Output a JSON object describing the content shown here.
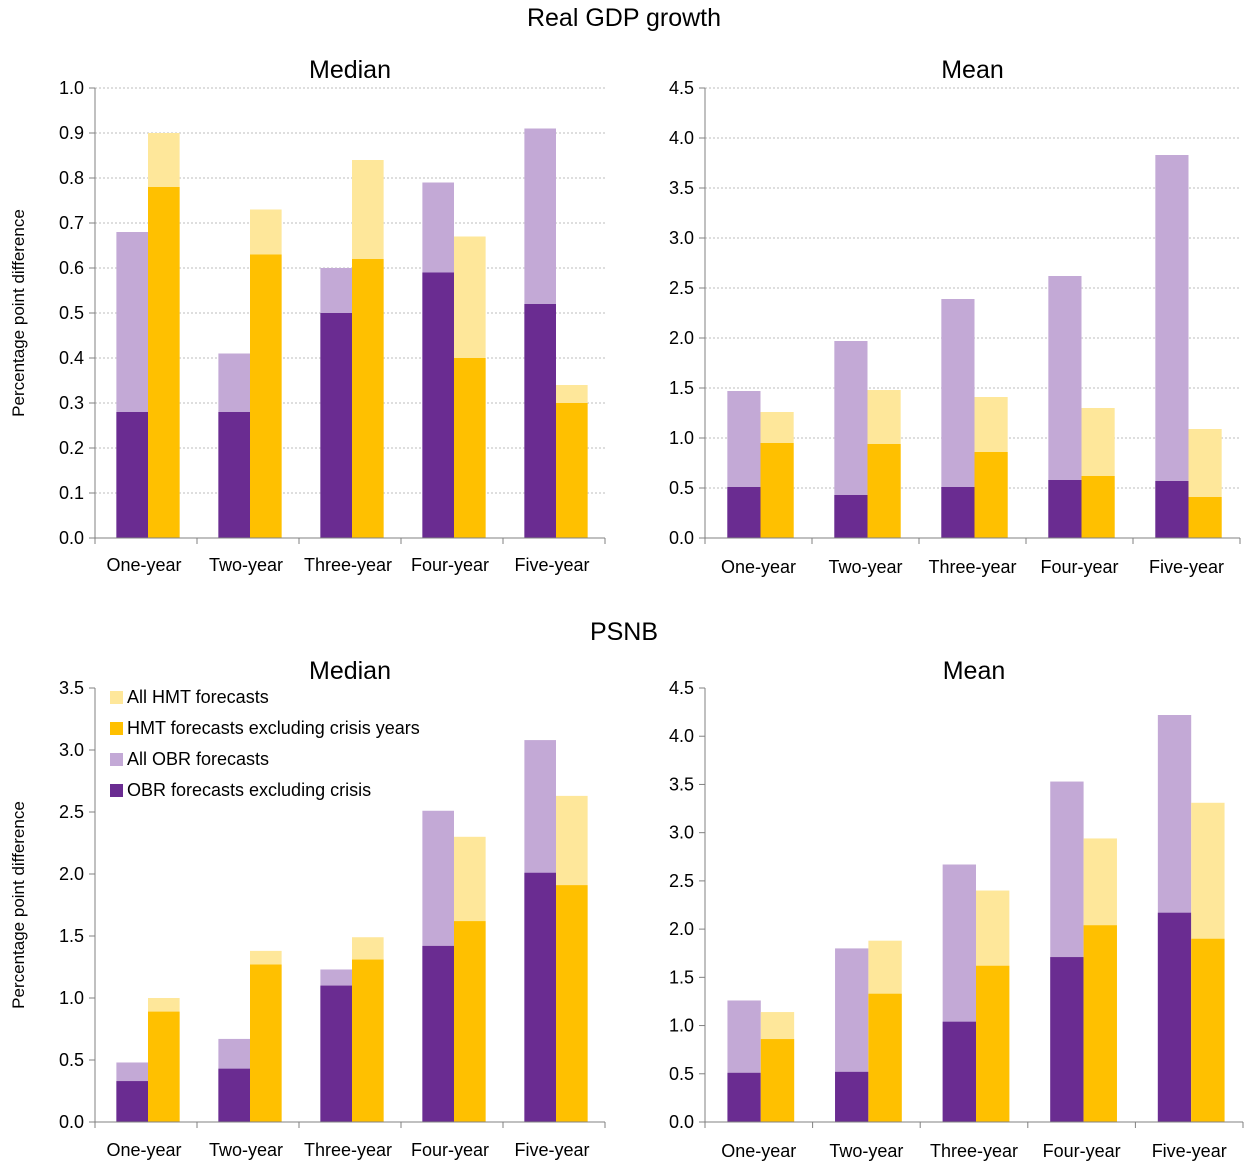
{
  "sections": [
    {
      "title": "Real GDP growth"
    },
    {
      "title": "PSNB"
    }
  ],
  "colors": {
    "all_hmt": "#FEE79A",
    "hmt_ex_crisis": "#FFC000",
    "all_obr": "#C3A9D6",
    "obr_ex_crisis": "#6A2C91"
  },
  "legend": [
    {
      "label": "All HMT forecasts",
      "color_key": "all_hmt"
    },
    {
      "label": "HMT forecasts excluding crisis years",
      "color_key": "hmt_ex_crisis"
    },
    {
      "label": "All OBR forecasts",
      "color_key": "all_obr"
    },
    {
      "label": "OBR forecasts excluding crisis",
      "color_key": "obr_ex_crisis"
    }
  ],
  "chart_data": [
    {
      "type": "bar",
      "section": "Real GDP growth",
      "title": "Median",
      "ylabel": "Percentage point difference",
      "ylim": [
        0,
        1.0
      ],
      "ytick_step": 0.1,
      "ytick_decimals": 1,
      "categories": [
        "One-year",
        "Two-year",
        "Three-year",
        "Four-year",
        "Five-year"
      ],
      "series": [
        {
          "name": "All OBR forecasts",
          "values": [
            0.68,
            0.41,
            0.6,
            0.79,
            0.91
          ]
        },
        {
          "name": "OBR forecasts excluding crisis",
          "values": [
            0.28,
            0.28,
            0.5,
            0.59,
            0.52
          ]
        },
        {
          "name": "All HMT forecasts",
          "values": [
            0.9,
            0.73,
            0.84,
            0.67,
            0.34
          ]
        },
        {
          "name": "HMT forecasts excluding crisis years",
          "values": [
            0.78,
            0.63,
            0.62,
            0.4,
            0.3
          ]
        }
      ],
      "grid": true
    },
    {
      "type": "bar",
      "section": "Real GDP growth",
      "title": "Mean",
      "ylabel": "",
      "ylim": [
        0,
        4.5
      ],
      "ytick_step": 0.5,
      "ytick_decimals": 1,
      "categories": [
        "One-year",
        "Two-year",
        "Three-year",
        "Four-year",
        "Five-year"
      ],
      "series": [
        {
          "name": "All OBR forecasts",
          "values": [
            1.47,
            1.97,
            2.39,
            2.62,
            3.83
          ]
        },
        {
          "name": "OBR forecasts excluding crisis",
          "values": [
            0.51,
            0.43,
            0.51,
            0.58,
            0.57
          ]
        },
        {
          "name": "All HMT forecasts",
          "values": [
            1.26,
            1.48,
            1.41,
            1.3,
            1.09
          ]
        },
        {
          "name": "HMT forecasts excluding crisis years",
          "values": [
            0.95,
            0.94,
            0.86,
            0.62,
            0.41
          ]
        }
      ],
      "grid": true
    },
    {
      "type": "bar",
      "section": "PSNB",
      "title": "Median",
      "ylabel": "Percentage point difference",
      "ylim": [
        0,
        3.5
      ],
      "ytick_step": 0.5,
      "ytick_decimals": 1,
      "categories": [
        "One-year",
        "Two-year",
        "Three-year",
        "Four-year",
        "Five-year"
      ],
      "series": [
        {
          "name": "All OBR forecasts",
          "values": [
            0.48,
            0.67,
            1.23,
            2.51,
            3.08
          ]
        },
        {
          "name": "OBR forecasts excluding crisis",
          "values": [
            0.33,
            0.43,
            1.1,
            1.42,
            2.01
          ]
        },
        {
          "name": "All HMT forecasts",
          "values": [
            1.0,
            1.38,
            1.49,
            2.3,
            2.63
          ]
        },
        {
          "name": "HMT forecasts excluding crisis years",
          "values": [
            0.89,
            1.27,
            1.31,
            1.62,
            1.91
          ]
        }
      ],
      "grid": false,
      "legend_placement": "top-left"
    },
    {
      "type": "bar",
      "section": "PSNB",
      "title": "Mean",
      "ylabel": "",
      "ylim": [
        0,
        4.5
      ],
      "ytick_step": 0.5,
      "ytick_decimals": 1,
      "categories": [
        "One-year",
        "Two-year",
        "Three-year",
        "Four-year",
        "Five-year"
      ],
      "series": [
        {
          "name": "All OBR forecasts",
          "values": [
            1.26,
            1.8,
            2.67,
            3.53,
            4.22
          ]
        },
        {
          "name": "OBR forecasts excluding crisis",
          "values": [
            0.51,
            0.52,
            1.04,
            1.71,
            2.17
          ]
        },
        {
          "name": "All HMT forecasts",
          "values": [
            1.14,
            1.88,
            2.4,
            2.94,
            3.31
          ]
        },
        {
          "name": "HMT forecasts excluding crisis years",
          "values": [
            0.86,
            1.33,
            1.62,
            2.04,
            1.9
          ]
        }
      ],
      "grid": false
    }
  ]
}
